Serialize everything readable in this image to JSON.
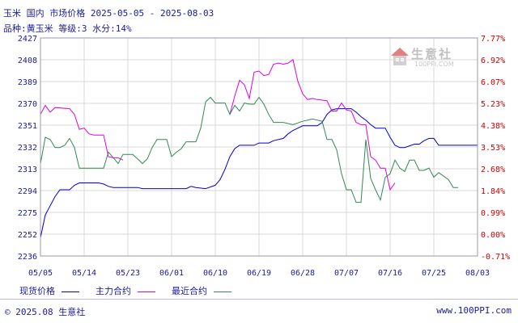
{
  "header": {
    "line1": "玉米 国内 市场价格 2025-05-05 - 2025-08-03",
    "line2": "品种:黄玉米 等级:3 水分:14%"
  },
  "watermark": {
    "name": "生意社",
    "url": "100PPI.COM"
  },
  "footer": {
    "left": "© 2025.08 生意社",
    "right": "www.100PPI.com"
  },
  "colors": {
    "series1": "#0000cc",
    "series2": "#dd00dd",
    "series3": "#338855",
    "axis_text": "#1a1a9a",
    "right_axis_text": "#cc0000",
    "grid": "#d8d8d8"
  },
  "chart_data": {
    "type": "line",
    "y_left_ticks": [
      "2427",
      "2408",
      "2389",
      "2370",
      "2351",
      "2332",
      "2313",
      "2294",
      "2275",
      "2252",
      "2236"
    ],
    "y_right_ticks": [
      "7.77%",
      "6.92%",
      "6.07%",
      "5.23%",
      "4.38%",
      "3.53%",
      "2.68%",
      "1.84%",
      "0.99%",
      "0.00%",
      "-0.71%"
    ],
    "x_ticks": [
      "05/05",
      "05/14",
      "05/23",
      "06/01",
      "06/10",
      "06/19",
      "06/28",
      "07/07",
      "07/16",
      "07/25",
      "08/03"
    ],
    "grid": true,
    "legend_position": "bottom",
    "series": [
      {
        "name": "现货价格",
        "color": "#0000cc",
        "points": [
          [
            0,
            2252
          ],
          [
            1,
            2272
          ],
          [
            2,
            2280
          ],
          [
            3,
            2288
          ],
          [
            4,
            2294
          ],
          [
            6,
            2294
          ],
          [
            7,
            2298
          ],
          [
            8,
            2300
          ],
          [
            12,
            2300
          ],
          [
            13,
            2299
          ],
          [
            14,
            2297
          ],
          [
            15,
            2296
          ],
          [
            20,
            2296
          ],
          [
            21,
            2295
          ],
          [
            30,
            2295
          ],
          [
            31,
            2297
          ],
          [
            32,
            2296
          ],
          [
            34,
            2295
          ],
          [
            36,
            2298
          ],
          [
            37,
            2303
          ],
          [
            38,
            2312
          ],
          [
            39,
            2323
          ],
          [
            40,
            2330
          ],
          [
            41,
            2333
          ],
          [
            44,
            2333
          ],
          [
            45,
            2335
          ],
          [
            47,
            2335
          ],
          [
            48,
            2337
          ],
          [
            50,
            2339
          ],
          [
            51,
            2343
          ],
          [
            52,
            2346
          ],
          [
            54,
            2350
          ],
          [
            57,
            2350
          ],
          [
            58,
            2353
          ],
          [
            59,
            2360
          ],
          [
            60,
            2364
          ],
          [
            61,
            2365
          ],
          [
            63,
            2365
          ],
          [
            64,
            2365
          ],
          [
            65,
            2362
          ],
          [
            66,
            2358
          ],
          [
            67,
            2355
          ],
          [
            68,
            2351
          ],
          [
            69,
            2348
          ],
          [
            71,
            2348
          ],
          [
            72,
            2340
          ],
          [
            73,
            2333
          ],
          [
            74,
            2331
          ],
          [
            75,
            2331
          ],
          [
            77,
            2334
          ],
          [
            78,
            2334
          ],
          [
            79,
            2337
          ],
          [
            80,
            2339
          ],
          [
            81,
            2339
          ],
          [
            82,
            2333
          ],
          [
            90,
            2333
          ]
        ]
      },
      {
        "name": "主力合约",
        "color": "#dd00dd",
        "points": [
          [
            0,
            2360
          ],
          [
            1,
            2368
          ],
          [
            2,
            2362
          ],
          [
            3,
            2366
          ],
          [
            6,
            2365
          ],
          [
            7,
            2360
          ],
          [
            8,
            2347
          ],
          [
            9,
            2348
          ],
          [
            10,
            2343
          ],
          [
            11,
            2342
          ],
          [
            13,
            2342
          ],
          [
            14,
            2323
          ],
          [
            15,
            2322
          ],
          [
            16,
            2322
          ],
          [
            17,
            2320
          ]
        ],
        "segments": [
          [
            [
              39,
              2360
            ],
            [
              40,
              2376
            ],
            [
              41,
              2390
            ],
            [
              42,
              2386
            ],
            [
              43,
              2374
            ],
            [
              44,
              2397
            ],
            [
              45,
              2398
            ],
            [
              46,
              2394
            ],
            [
              47,
              2395
            ],
            [
              48,
              2404
            ],
            [
              49,
              2405
            ],
            [
              50,
              2404
            ],
            [
              51,
              2405
            ],
            [
              52,
              2408
            ],
            [
              53,
              2389
            ],
            [
              54,
              2378
            ],
            [
              55,
              2373
            ],
            [
              56,
              2374
            ],
            [
              57,
              2373
            ],
            [
              59,
              2372
            ],
            [
              60,
              2363
            ],
            [
              61,
              2363
            ],
            [
              62,
              2370
            ],
            [
              63,
              2364
            ],
            [
              64,
              2363
            ],
            [
              65,
              2353
            ],
            [
              66,
              2351
            ],
            [
              67,
              2351
            ],
            [
              68,
              2323
            ],
            [
              69,
              2320
            ],
            [
              70,
              2313
            ],
            [
              71,
              2313
            ],
            [
              72,
              2294
            ],
            [
              73,
              2300
            ]
          ]
        ]
      },
      {
        "name": "最近合约",
        "color": "#338855",
        "points": [
          [
            0,
            2317
          ],
          [
            1,
            2340
          ],
          [
            2,
            2338
          ],
          [
            3,
            2331
          ],
          [
            4,
            2331
          ],
          [
            5,
            2333
          ],
          [
            6,
            2339
          ],
          [
            7,
            2331
          ],
          [
            8,
            2313
          ],
          [
            9,
            2313
          ],
          [
            13,
            2313
          ],
          [
            14,
            2327
          ],
          [
            15,
            2322
          ],
          [
            16,
            2317
          ],
          [
            17,
            2325
          ],
          [
            19,
            2325
          ],
          [
            20,
            2321
          ],
          [
            21,
            2317
          ],
          [
            22,
            2321
          ],
          [
            23,
            2331
          ],
          [
            24,
            2338
          ],
          [
            25,
            2338
          ],
          [
            26,
            2338
          ],
          [
            27,
            2323
          ],
          [
            28,
            2327
          ],
          [
            29,
            2330
          ],
          [
            30,
            2336
          ],
          [
            31,
            2336
          ],
          [
            32,
            2336
          ],
          [
            33,
            2348
          ],
          [
            34,
            2371
          ],
          [
            35,
            2375
          ],
          [
            36,
            2370
          ],
          [
            37,
            2370
          ],
          [
            38,
            2370
          ],
          [
            39,
            2360
          ],
          [
            40,
            2368
          ],
          [
            41,
            2363
          ],
          [
            42,
            2370
          ],
          [
            43,
            2369
          ],
          [
            44,
            2369
          ],
          [
            45,
            2375
          ],
          [
            46,
            2369
          ],
          [
            47,
            2360
          ],
          [
            48,
            2353
          ],
          [
            49,
            2353
          ],
          [
            50,
            2353
          ],
          [
            52,
            2351
          ],
          [
            54,
            2354
          ],
          [
            56,
            2356
          ],
          [
            58,
            2354
          ],
          [
            59,
            2338
          ],
          [
            60,
            2338
          ],
          [
            61,
            2329
          ],
          [
            62,
            2308
          ],
          [
            63,
            2294
          ],
          [
            64,
            2294
          ],
          [
            65,
            2283
          ],
          [
            66,
            2283
          ],
          [
            67,
            2338
          ],
          [
            68,
            2304
          ],
          [
            69,
            2294
          ],
          [
            70,
            2285
          ],
          [
            71,
            2305
          ],
          [
            72,
            2308
          ],
          [
            73,
            2320
          ],
          [
            74,
            2313
          ],
          [
            75,
            2310
          ],
          [
            76,
            2320
          ],
          [
            77,
            2320
          ],
          [
            78,
            2311
          ],
          [
            79,
            2311
          ],
          [
            80,
            2313
          ],
          [
            81,
            2305
          ],
          [
            82,
            2309
          ],
          [
            84,
            2303
          ],
          [
            85,
            2296
          ],
          [
            86,
            2296
          ]
        ]
      }
    ]
  }
}
